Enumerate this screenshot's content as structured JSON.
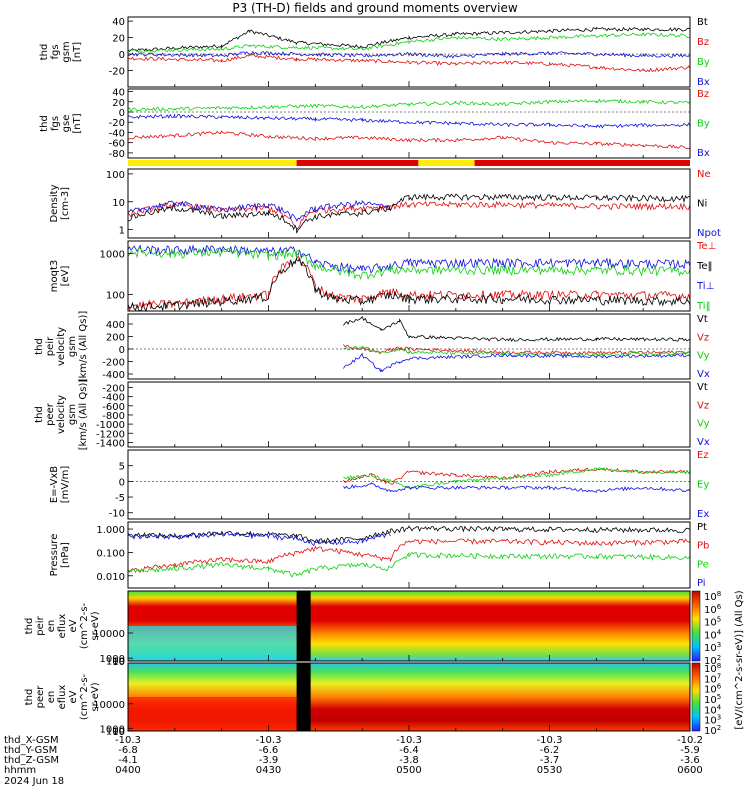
{
  "title": "P3 (TH-D) fields and ground moments overview",
  "colors": {
    "black": "#000000",
    "red": "#e01010",
    "green": "#10d010",
    "blue": "#1010e0",
    "bar_yellow": "#ffec00",
    "bar_red": "#e00000"
  },
  "chart_data": [
    {
      "panel": "fgs_gsm",
      "type": "line",
      "ylabel_lines": [
        "thd",
        "fgs",
        "gsm",
        "[nT]"
      ],
      "ylim": [
        -40,
        45
      ],
      "yticks": [
        40,
        20,
        0,
        -20
      ],
      "series": [
        {
          "name": "Bt",
          "color": "black",
          "x": [
            0,
            10,
            13,
            18,
            25,
            30,
            35,
            40,
            45,
            50,
            55,
            60
          ],
          "y": [
            4,
            10,
            28,
            14,
            9,
            20,
            24,
            26,
            28,
            30,
            30,
            30
          ]
        },
        {
          "name": "Bz",
          "color": "red",
          "x": [
            0,
            10,
            13,
            18,
            25,
            30,
            35,
            40,
            45,
            50,
            55,
            60
          ],
          "y": [
            -5,
            -8,
            -2,
            -6,
            -8,
            -10,
            -12,
            -10,
            -12,
            -16,
            -20,
            -16
          ]
        },
        {
          "name": "By",
          "color": "green",
          "x": [
            0,
            10,
            13,
            18,
            25,
            30,
            35,
            40,
            45,
            50,
            55,
            60
          ],
          "y": [
            4,
            6,
            10,
            8,
            6,
            15,
            20,
            18,
            20,
            22,
            24,
            22
          ]
        },
        {
          "name": "Bx",
          "color": "blue",
          "x": [
            0,
            10,
            13,
            18,
            25,
            30,
            35,
            40,
            45,
            50,
            55,
            60
          ],
          "y": [
            0,
            -2,
            2,
            0,
            -2,
            0,
            -3,
            0,
            1,
            0,
            -2,
            -2
          ]
        }
      ]
    },
    {
      "panel": "fgs_gse",
      "type": "line",
      "ylabel_lines": [
        "thd",
        "fgs",
        "gse",
        "[nT]"
      ],
      "ylim": [
        -90,
        45
      ],
      "yticks": [
        40,
        20,
        0,
        -20,
        -40,
        -60,
        -80
      ],
      "series": [
        {
          "name": "Bz",
          "color": "red",
          "x": [
            0,
            5,
            10,
            15,
            20,
            25,
            30,
            35,
            40,
            45,
            50,
            55,
            60
          ],
          "y": [
            -50,
            -46,
            -40,
            -48,
            -52,
            -50,
            -55,
            -55,
            -50,
            -60,
            -62,
            -65,
            -70
          ]
        },
        {
          "name": "By",
          "color": "green",
          "x": [
            0,
            5,
            10,
            15,
            20,
            25,
            30,
            35,
            40,
            45,
            50,
            55,
            60
          ],
          "y": [
            5,
            6,
            8,
            10,
            12,
            10,
            15,
            18,
            15,
            20,
            22,
            20,
            18
          ]
        },
        {
          "name": "Bx",
          "color": "blue",
          "x": [
            0,
            5,
            10,
            15,
            20,
            25,
            30,
            35,
            40,
            45,
            50,
            55,
            60
          ],
          "y": [
            -10,
            -8,
            -10,
            -12,
            -14,
            -16,
            -20,
            -22,
            -25,
            -25,
            -28,
            -26,
            -25
          ]
        }
      ]
    },
    {
      "panel": "mode_bar",
      "type": "bar",
      "segments": [
        {
          "from": 0,
          "to": 18,
          "color": "bar_yellow"
        },
        {
          "from": 18,
          "to": 31,
          "color": "bar_red"
        },
        {
          "from": 31,
          "to": 37,
          "color": "bar_yellow"
        },
        {
          "from": 37,
          "to": 60,
          "color": "bar_red"
        }
      ]
    },
    {
      "panel": "density",
      "type": "line",
      "yscale": "log",
      "ylabel_lines": [
        "Density",
        "[cm-3]"
      ],
      "ylim": [
        0.5,
        150
      ],
      "yticks": [
        100,
        10,
        1
      ],
      "ytick_labels": [
        "100",
        "10",
        "1"
      ],
      "series": [
        {
          "name": "Ne",
          "color": "red",
          "x": [
            0,
            5,
            10,
            15,
            18,
            20,
            25,
            28,
            30,
            40,
            50,
            60
          ],
          "y": [
            3.5,
            8,
            5,
            6,
            1,
            5,
            6,
            7,
            8,
            8,
            7,
            7
          ]
        },
        {
          "name": "Ni",
          "color": "black",
          "x": [
            0,
            5,
            10,
            15,
            18,
            20,
            25,
            28,
            30,
            40,
            50,
            60
          ],
          "y": [
            2.5,
            6,
            3,
            4,
            1,
            3,
            4,
            6,
            15,
            15,
            14,
            13
          ]
        },
        {
          "name": "Npot",
          "color": "blue",
          "x": [
            0,
            5,
            10,
            15,
            18,
            20,
            25,
            28
          ],
          "y": [
            4,
            9,
            5,
            8,
            2,
            6,
            9,
            6
          ]
        }
      ]
    },
    {
      "panel": "temperature",
      "type": "line",
      "yscale": "log",
      "ylabel_lines": [
        "moqt3",
        "[eV]"
      ],
      "ylim": [
        40,
        2000
      ],
      "yticks": [
        1000,
        100
      ],
      "ytick_labels": [
        "1000",
        "100"
      ],
      "series": [
        {
          "name": "Te⊥",
          "color": "red",
          "x": [
            0,
            5,
            10,
            15,
            18,
            20,
            22,
            25,
            28,
            30,
            40,
            50,
            60
          ],
          "y": [
            55,
            60,
            80,
            100,
            800,
            150,
            90,
            80,
            120,
            100,
            100,
            100,
            95
          ]
        },
        {
          "name": "Te‖",
          "color": "black",
          "x": [
            0,
            5,
            10,
            15,
            18,
            20,
            22,
            25,
            28,
            30,
            40,
            50,
            60
          ],
          "y": [
            50,
            55,
            70,
            90,
            700,
            130,
            80,
            70,
            100,
            80,
            80,
            75,
            70
          ]
        },
        {
          "name": "Ti⊥",
          "color": "blue",
          "x": [
            0,
            5,
            10,
            15,
            18,
            20,
            22,
            25,
            28,
            30,
            40,
            50,
            60
          ],
          "y": [
            1300,
            1200,
            1300,
            1100,
            1200,
            600,
            500,
            400,
            500,
            600,
            600,
            600,
            550
          ]
        },
        {
          "name": "Ti‖",
          "color": "green",
          "x": [
            0,
            5,
            10,
            15,
            18,
            20,
            22,
            25,
            28,
            30,
            40,
            50,
            60
          ],
          "y": [
            1100,
            1000,
            1100,
            900,
            1000,
            500,
            400,
            300,
            400,
            400,
            400,
            400,
            380
          ]
        }
      ]
    },
    {
      "panel": "pier_velocity",
      "type": "line",
      "ylabel_lines": [
        "thd",
        "peir",
        "velocity",
        "gsm",
        "[km/s (All Qs)]"
      ],
      "ylim": [
        -480,
        560
      ],
      "yticks": [
        400,
        200,
        0,
        -200,
        -400
      ],
      "series": [
        {
          "name": "Vt",
          "color": "black",
          "x": [
            23,
            25,
            27,
            29,
            30,
            40,
            50,
            60
          ],
          "y": [
            400,
            500,
            300,
            450,
            200,
            150,
            160,
            150
          ]
        },
        {
          "name": "Vz",
          "color": "red",
          "x": [
            23,
            25,
            27,
            29,
            30,
            40,
            50,
            60
          ],
          "y": [
            50,
            0,
            -50,
            20,
            0,
            -50,
            -60,
            -50
          ]
        },
        {
          "name": "Vy",
          "color": "green",
          "x": [
            23,
            25,
            27,
            29,
            30,
            40,
            50,
            60
          ],
          "y": [
            0,
            30,
            -60,
            0,
            -50,
            -80,
            -90,
            -70
          ]
        },
        {
          "name": "Vx",
          "color": "blue",
          "x": [
            23,
            25,
            27,
            29,
            30,
            40,
            50,
            60
          ],
          "y": [
            -300,
            -100,
            -350,
            -200,
            -150,
            -100,
            -120,
            -100
          ]
        }
      ]
    },
    {
      "panel": "peer_velocity",
      "type": "line",
      "ylabel_lines": [
        "thd",
        "peer",
        "velocity",
        "gsm",
        "[km/s (All Qs)]"
      ],
      "ylim": [
        -1500,
        -80
      ],
      "yticks": [
        -200,
        -400,
        -600,
        -800,
        -1000,
        -1200,
        -1400
      ],
      "series": [
        {
          "name": "Vt",
          "color": "black",
          "x": [],
          "y": []
        },
        {
          "name": "Vz",
          "color": "red",
          "x": [],
          "y": []
        },
        {
          "name": "Vy",
          "color": "green",
          "x": [],
          "y": []
        },
        {
          "name": "Vx",
          "color": "blue",
          "x": [],
          "y": []
        }
      ]
    },
    {
      "panel": "efield",
      "type": "line",
      "ylabel_lines": [
        "E=-VxB",
        "[mV/m]"
      ],
      "ylim": [
        -12,
        10
      ],
      "yticks": [
        5,
        0,
        -5,
        -10
      ],
      "series": [
        {
          "name": "Ez",
          "color": "red",
          "x": [
            23,
            26,
            28,
            30,
            35,
            40,
            45,
            50,
            55,
            60
          ],
          "y": [
            0,
            2,
            -1,
            3,
            2,
            1,
            3,
            4,
            3,
            3
          ]
        },
        {
          "name": "Ey",
          "color": "green",
          "x": [
            23,
            26,
            28,
            30,
            35,
            40,
            45,
            50,
            55,
            60
          ],
          "y": [
            1,
            2,
            0,
            -2,
            0,
            1,
            2,
            4,
            3,
            3
          ]
        },
        {
          "name": "Ex",
          "color": "blue",
          "x": [
            23,
            26,
            28,
            30,
            35,
            40,
            45,
            50,
            55,
            60
          ],
          "y": [
            -2,
            -1,
            -3,
            -2,
            -2,
            -2,
            -2,
            -3,
            -2,
            -3
          ]
        }
      ]
    },
    {
      "panel": "pressure",
      "type": "line",
      "yscale": "log",
      "ylabel_lines": [
        "Pressure",
        "[nPa]"
      ],
      "ylim": [
        0.003,
        2
      ],
      "yticks": [
        1,
        0.1,
        0.01
      ],
      "ytick_labels": [
        "1.000",
        "0.100",
        "0.010"
      ],
      "series": [
        {
          "name": "Pt",
          "color": "black",
          "x": [
            0,
            5,
            10,
            15,
            18,
            20,
            25,
            28,
            30,
            40,
            50,
            60
          ],
          "y": [
            0.6,
            0.5,
            0.7,
            0.6,
            0.5,
            0.3,
            0.4,
            0.8,
            1.1,
            1.0,
            0.95,
            0.9
          ]
        },
        {
          "name": "Pb",
          "color": "red",
          "x": [
            0,
            5,
            10,
            15,
            18,
            20,
            25,
            28,
            30,
            40,
            50,
            60
          ],
          "y": [
            0.015,
            0.03,
            0.05,
            0.04,
            0.1,
            0.15,
            0.08,
            0.05,
            0.3,
            0.3,
            0.25,
            0.3
          ]
        },
        {
          "name": "Pe",
          "color": "green",
          "x": [
            0,
            5,
            10,
            15,
            18,
            20,
            25,
            28,
            30,
            40,
            50,
            60
          ],
          "y": [
            0.015,
            0.02,
            0.03,
            0.02,
            0.01,
            0.02,
            0.03,
            0.02,
            0.08,
            0.07,
            0.07,
            0.06
          ]
        },
        {
          "name": "Pi",
          "color": "blue",
          "x": [
            0,
            5,
            10,
            15,
            18,
            20,
            25,
            28
          ],
          "y": [
            0.5,
            0.45,
            0.6,
            0.5,
            0.4,
            0.25,
            0.3,
            0.6
          ]
        }
      ]
    },
    {
      "panel": "peir_spectrogram",
      "type": "heatmap",
      "ylabel_lines": [
        "thd",
        "peir",
        "en",
        "eflux",
        "eV",
        "(cm^2-s-",
        "sr-eV)"
      ],
      "ylim": [
        5,
        25000
      ],
      "yticks": [
        10000,
        1000,
        100,
        10
      ],
      "ytick_labels": [
        "10000",
        "1000",
        "100",
        "10"
      ],
      "colorbar_labels": [
        "10^8",
        "10^6",
        "10^5",
        "10^4",
        "10^3",
        "10^2"
      ]
    },
    {
      "panel": "peer_spectrogram",
      "type": "heatmap",
      "ylabel_lines": [
        "thd",
        "peer",
        "en",
        "eflux",
        "eV",
        "(cm^2-s-",
        "sr-eV)"
      ],
      "ylim": [
        5,
        25000
      ],
      "yticks": [
        10000,
        1000,
        100,
        10
      ],
      "ytick_labels": [
        "10000",
        "1000",
        "100",
        "10"
      ],
      "colorbar_labels": [
        "10^8",
        "10^7",
        "10^6",
        "10^5",
        "10^4",
        "10^3",
        "10^2"
      ]
    }
  ],
  "colorbar_title": "[eV/(cm^2-s-sr-eV)] (All Qs)",
  "xaxis": {
    "row_labels": [
      "thd_X-GSM",
      "thd_Y-GSM",
      "thd_Z-GSM",
      "hhmm",
      "2024 Jun 18"
    ],
    "ticks": [
      {
        "t": 0,
        "x_gsm": "-10.3",
        "y_gsm": "-6.8",
        "z_gsm": "-4.1",
        "hhmm": "0400"
      },
      {
        "t": 15,
        "x_gsm": "-10.3",
        "y_gsm": "-6.6",
        "z_gsm": "-3.9",
        "hhmm": "0430"
      },
      {
        "t": 30,
        "x_gsm": "-10.3",
        "y_gsm": "-6.4",
        "z_gsm": "-3.8",
        "hhmm": "0500"
      },
      {
        "t": 45,
        "x_gsm": "-10.3",
        "y_gsm": "-6.2",
        "z_gsm": "-3.7",
        "hhmm": "0530"
      },
      {
        "t": 60,
        "x_gsm": "-10.2",
        "y_gsm": "-5.9",
        "z_gsm": "-3.6",
        "hhmm": "0600"
      }
    ]
  }
}
